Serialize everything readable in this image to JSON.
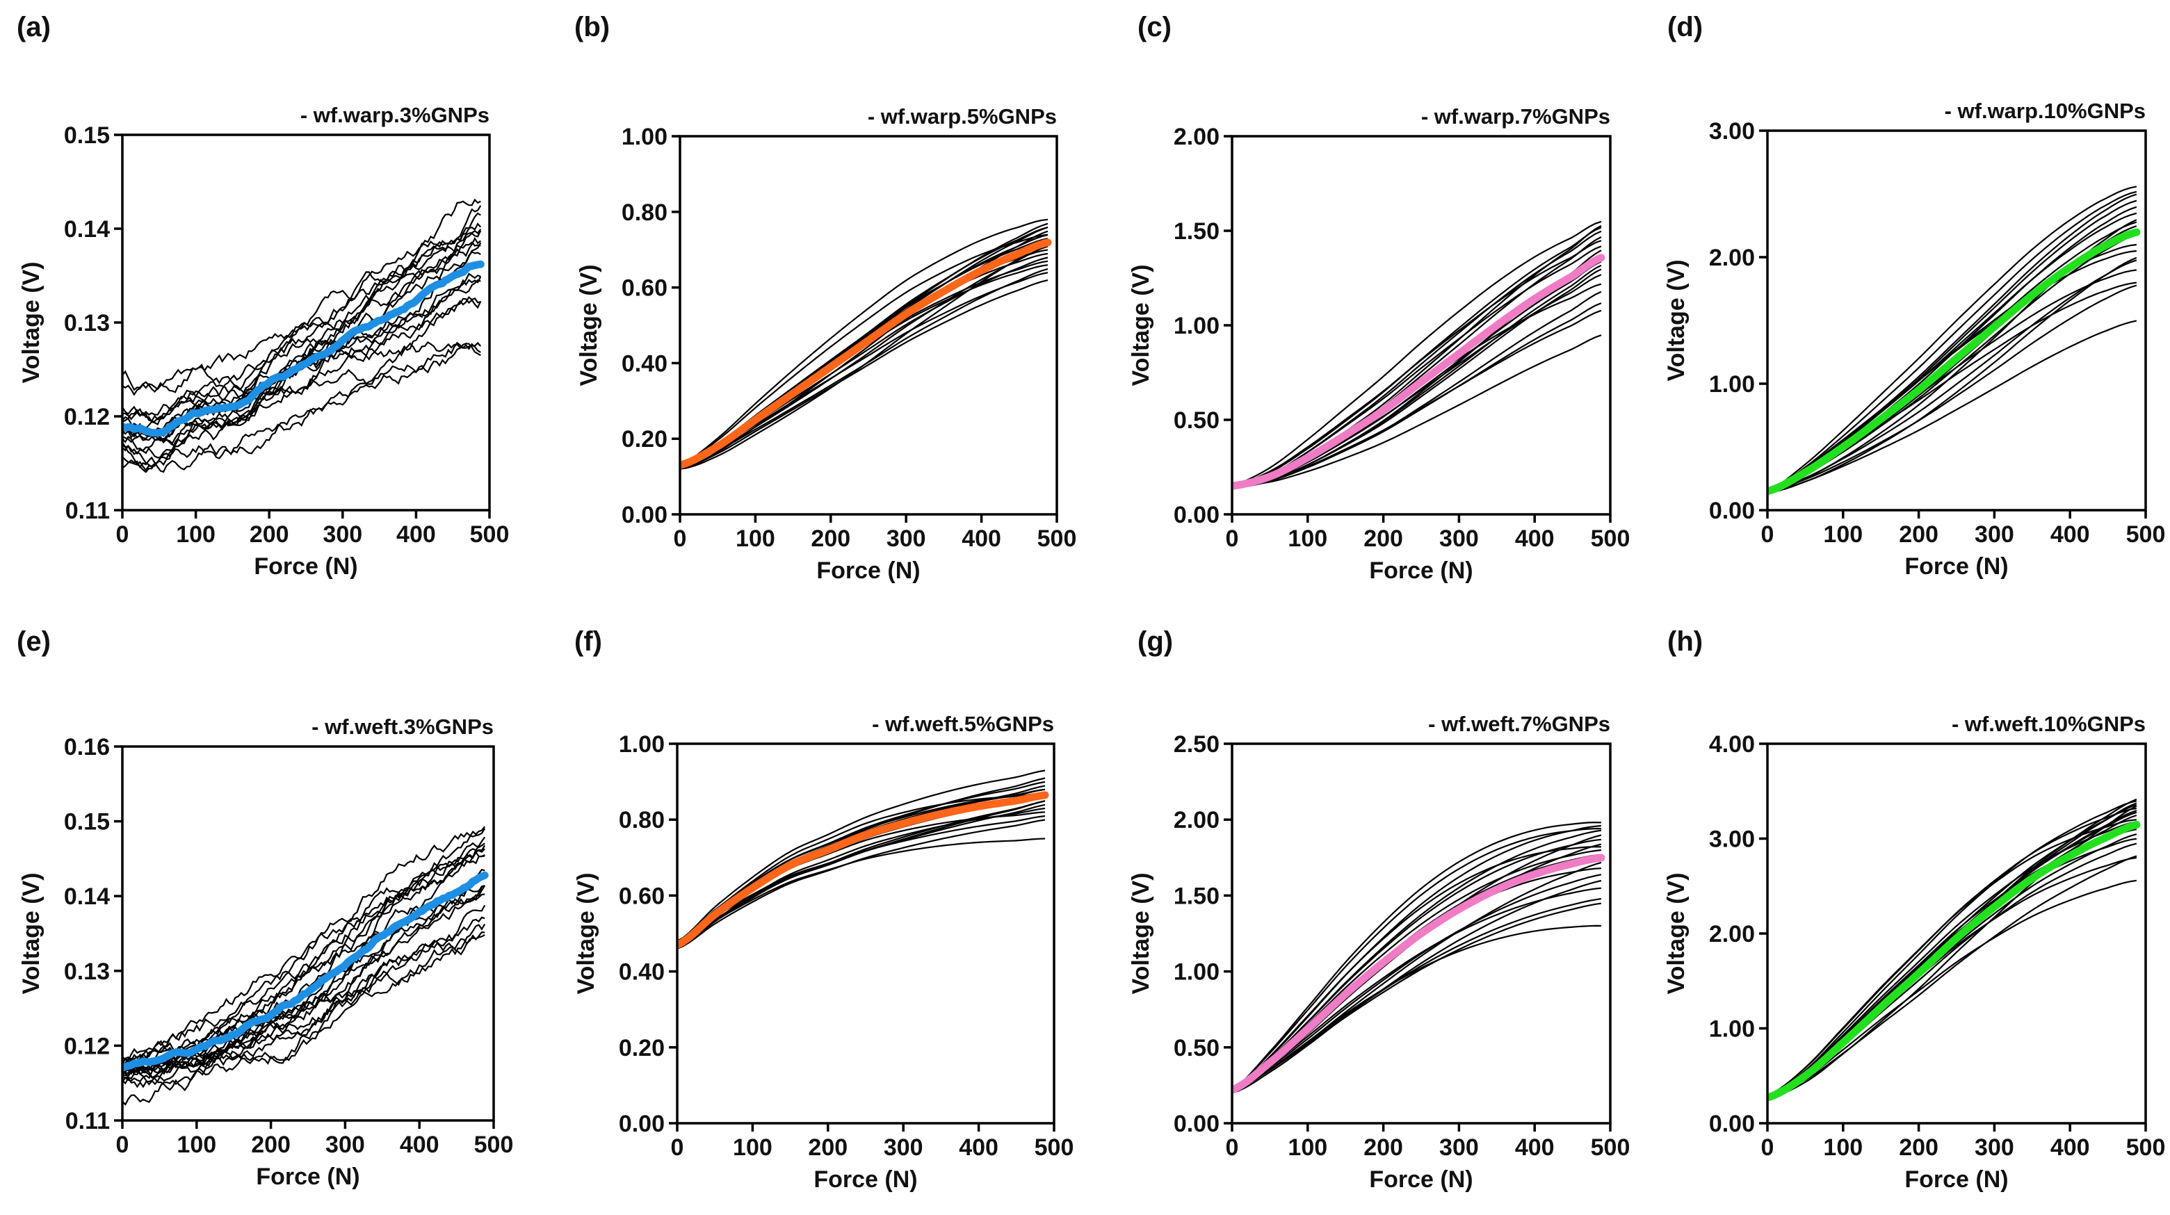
{
  "chart_data": [
    {
      "panel": "(a)",
      "type": "line",
      "title": "- wf.warp.3%GNPs",
      "xlabel": "Force (N)",
      "ylabel": "Voltage (V)",
      "xlim": [
        0,
        500
      ],
      "ylim": [
        0.11,
        0.15
      ],
      "xticks": [
        "0",
        "100",
        "200",
        "300",
        "400",
        "500"
      ],
      "yticks": [
        "0.11",
        "0.12",
        "0.13",
        "0.14",
        "0.15"
      ],
      "mean_color": "#1e8fe3",
      "noisy": true,
      "x": [
        0,
        50,
        100,
        150,
        200,
        250,
        300,
        350,
        400,
        450,
        490
      ],
      "mean": [
        0.119,
        0.1185,
        0.1205,
        0.121,
        0.1235,
        0.1255,
        0.128,
        0.13,
        0.1325,
        0.135,
        0.1365
      ],
      "traces": [
        [
          0.124,
          0.144
        ],
        [
          0.123,
          0.128
        ],
        [
          0.118,
          0.141
        ],
        [
          0.119,
          0.139
        ],
        [
          0.117,
          0.137
        ],
        [
          0.12,
          0.133
        ],
        [
          0.118,
          0.135
        ],
        [
          0.116,
          0.129
        ],
        [
          0.119,
          0.142
        ],
        [
          0.121,
          0.138
        ],
        [
          0.117,
          0.136
        ],
        [
          0.118,
          0.14
        ],
        [
          0.119,
          0.134
        ],
        [
          0.115,
          0.132
        ],
        [
          0.12,
          0.139
        ],
        [
          0.118,
          0.137
        ],
        [
          0.117,
          0.141
        ],
        [
          0.119,
          0.127
        ]
      ]
    },
    {
      "panel": "(b)",
      "type": "line",
      "title": "- wf.warp.5%GNPs",
      "xlabel": "Force (N)",
      "ylabel": "Voltage (V)",
      "xlim": [
        0,
        500
      ],
      "ylim": [
        0,
        1
      ],
      "xticks": [
        "0",
        "100",
        "200",
        "300",
        "400",
        "500"
      ],
      "yticks": [
        "0.00",
        "0.20",
        "0.40",
        "0.60",
        "0.80",
        "1.00"
      ],
      "mean_color": "#ff661a",
      "noisy": false,
      "x": [
        0,
        50,
        100,
        150,
        200,
        250,
        300,
        350,
        400,
        450,
        490
      ],
      "mean": [
        0.13,
        0.18,
        0.25,
        0.32,
        0.39,
        0.46,
        0.53,
        0.59,
        0.645,
        0.69,
        0.72
      ],
      "traces": [
        [
          0.13,
          0.78
        ],
        [
          0.13,
          0.77
        ],
        [
          0.13,
          0.76
        ],
        [
          0.12,
          0.75
        ],
        [
          0.13,
          0.74
        ],
        [
          0.13,
          0.73
        ],
        [
          0.12,
          0.72
        ],
        [
          0.13,
          0.71
        ],
        [
          0.13,
          0.7
        ],
        [
          0.12,
          0.69
        ],
        [
          0.13,
          0.68
        ],
        [
          0.13,
          0.67
        ],
        [
          0.12,
          0.66
        ],
        [
          0.13,
          0.65
        ],
        [
          0.13,
          0.64
        ],
        [
          0.12,
          0.62
        ],
        [
          0.13,
          0.76
        ],
        [
          0.13,
          0.74
        ]
      ]
    },
    {
      "panel": "(c)",
      "type": "line",
      "title": "- wf.warp.7%GNPs",
      "xlabel": "Force (N)",
      "ylabel": "Voltage (V)",
      "xlim": [
        0,
        500
      ],
      "ylim": [
        0,
        2
      ],
      "xticks": [
        "0",
        "100",
        "200",
        "300",
        "400",
        "500"
      ],
      "yticks": [
        "0.00",
        "0.50",
        "1.00",
        "1.50",
        "2.00"
      ],
      "mean_color": "#f07cc6",
      "noisy": false,
      "x": [
        0,
        50,
        100,
        150,
        200,
        250,
        300,
        350,
        400,
        450,
        490
      ],
      "mean": [
        0.15,
        0.2,
        0.3,
        0.42,
        0.55,
        0.7,
        0.85,
        1.0,
        1.14,
        1.26,
        1.36
      ],
      "traces": [
        [
          0.15,
          1.55
        ],
        [
          0.15,
          1.53
        ],
        [
          0.14,
          1.5
        ],
        [
          0.15,
          1.47
        ],
        [
          0.15,
          1.45
        ],
        [
          0.14,
          1.42
        ],
        [
          0.15,
          1.4
        ],
        [
          0.15,
          1.37
        ],
        [
          0.14,
          1.34
        ],
        [
          0.15,
          1.3
        ],
        [
          0.15,
          1.27
        ],
        [
          0.14,
          1.22
        ],
        [
          0.15,
          1.18
        ],
        [
          0.15,
          1.12
        ],
        [
          0.14,
          1.08
        ],
        [
          0.15,
          0.95
        ],
        [
          0.15,
          1.52
        ],
        [
          0.14,
          1.32
        ]
      ]
    },
    {
      "panel": "(d)",
      "type": "line",
      "title": "- wf.warp.10%GNPs",
      "xlabel": "Force (N)",
      "ylabel": "Voltage (V)",
      "xlim": [
        0,
        500
      ],
      "ylim": [
        0,
        3
      ],
      "xticks": [
        "0",
        "100",
        "200",
        "300",
        "400",
        "500"
      ],
      "yticks": [
        "0.00",
        "1.00",
        "2.00",
        "3.00"
      ],
      "mean_color": "#23e01f",
      "noisy": false,
      "x": [
        0,
        50,
        100,
        150,
        200,
        250,
        300,
        350,
        400,
        450,
        490
      ],
      "mean": [
        0.15,
        0.3,
        0.5,
        0.72,
        0.95,
        1.2,
        1.45,
        1.7,
        1.92,
        2.1,
        2.2
      ],
      "traces": [
        [
          0.15,
          2.56
        ],
        [
          0.15,
          2.5
        ],
        [
          0.14,
          2.45
        ],
        [
          0.15,
          2.4
        ],
        [
          0.15,
          2.35
        ],
        [
          0.14,
          2.3
        ],
        [
          0.15,
          2.25
        ],
        [
          0.15,
          2.18
        ],
        [
          0.14,
          2.1
        ],
        [
          0.15,
          2.05
        ],
        [
          0.15,
          1.98
        ],
        [
          0.14,
          1.9
        ],
        [
          0.15,
          1.8
        ],
        [
          0.15,
          1.78
        ],
        [
          0.14,
          1.5
        ],
        [
          0.15,
          2.28
        ],
        [
          0.15,
          2.52
        ],
        [
          0.14,
          2.0
        ]
      ]
    },
    {
      "panel": "(e)",
      "type": "line",
      "title": "- wf.weft.3%GNPs",
      "xlabel": "Force (N)",
      "ylabel": "Voltage (V)",
      "xlim": [
        0,
        500
      ],
      "ylim": [
        0.11,
        0.16
      ],
      "xticks": [
        "0",
        "100",
        "200",
        "300",
        "400",
        "500"
      ],
      "yticks": [
        "0.11",
        "0.12",
        "0.13",
        "0.14",
        "0.15",
        "0.16"
      ],
      "mean_color": "#1e8fe3",
      "noisy": true,
      "x": [
        0,
        50,
        100,
        150,
        200,
        250,
        300,
        350,
        400,
        450,
        490
      ],
      "mean": [
        0.117,
        0.118,
        0.1195,
        0.1215,
        0.124,
        0.127,
        0.131,
        0.135,
        0.138,
        0.1405,
        0.143
      ],
      "traces": [
        [
          0.118,
          0.15
        ],
        [
          0.117,
          0.149
        ],
        [
          0.116,
          0.148
        ],
        [
          0.118,
          0.147
        ],
        [
          0.117,
          0.146
        ],
        [
          0.116,
          0.145
        ],
        [
          0.118,
          0.144
        ],
        [
          0.117,
          0.142
        ],
        [
          0.116,
          0.141
        ],
        [
          0.118,
          0.14
        ],
        [
          0.117,
          0.139
        ],
        [
          0.115,
          0.138
        ],
        [
          0.117,
          0.136
        ],
        [
          0.118,
          0.135
        ],
        [
          0.116,
          0.134
        ],
        [
          0.117,
          0.1345
        ],
        [
          0.113,
          0.148
        ],
        [
          0.117,
          0.143
        ]
      ]
    },
    {
      "panel": "(f)",
      "type": "line",
      "title": "- wf.weft.5%GNPs",
      "xlabel": "Force (N)",
      "ylabel": "Voltage (V)",
      "xlim": [
        0,
        500
      ],
      "ylim": [
        0,
        1
      ],
      "xticks": [
        "0",
        "100",
        "200",
        "300",
        "400",
        "500"
      ],
      "yticks": [
        "0.00",
        "0.20",
        "0.40",
        "0.60",
        "0.80",
        "1.00"
      ],
      "mean_color": "#ff661a",
      "noisy": false,
      "x": [
        0,
        50,
        100,
        150,
        200,
        250,
        300,
        350,
        400,
        450,
        490
      ],
      "mean": [
        0.47,
        0.55,
        0.62,
        0.68,
        0.72,
        0.76,
        0.79,
        0.815,
        0.835,
        0.85,
        0.865
      ],
      "traces": [
        [
          0.48,
          0.93
        ],
        [
          0.47,
          0.91
        ],
        [
          0.48,
          0.9
        ],
        [
          0.46,
          0.89
        ],
        [
          0.47,
          0.88
        ],
        [
          0.48,
          0.87
        ],
        [
          0.46,
          0.86
        ],
        [
          0.47,
          0.85
        ],
        [
          0.48,
          0.84
        ],
        [
          0.46,
          0.83
        ],
        [
          0.47,
          0.82
        ],
        [
          0.48,
          0.81
        ],
        [
          0.46,
          0.8
        ],
        [
          0.47,
          0.75
        ],
        [
          0.48,
          0.88
        ],
        [
          0.47,
          0.86
        ],
        [
          0.46,
          0.85
        ],
        [
          0.47,
          0.87
        ]
      ]
    },
    {
      "panel": "(g)",
      "type": "line",
      "title": "- wf.weft.7%GNPs",
      "xlabel": "Force (N)",
      "ylabel": "Voltage (V)",
      "xlim": [
        0,
        500
      ],
      "ylim": [
        0,
        2.5
      ],
      "xticks": [
        "0",
        "100",
        "200",
        "300",
        "400",
        "500"
      ],
      "yticks": [
        "0.00",
        "0.50",
        "1.00",
        "1.50",
        "2.00",
        "2.50"
      ],
      "mean_color": "#f07cc6",
      "noisy": false,
      "x": [
        0,
        50,
        100,
        150,
        200,
        250,
        300,
        350,
        400,
        450,
        490
      ],
      "mean": [
        0.22,
        0.4,
        0.62,
        0.85,
        1.06,
        1.25,
        1.41,
        1.54,
        1.64,
        1.71,
        1.75
      ],
      "traces": [
        [
          0.22,
          1.98
        ],
        [
          0.21,
          1.96
        ],
        [
          0.22,
          1.93
        ],
        [
          0.2,
          1.9
        ],
        [
          0.22,
          1.87
        ],
        [
          0.21,
          1.84
        ],
        [
          0.22,
          1.8
        ],
        [
          0.2,
          1.77
        ],
        [
          0.22,
          1.72
        ],
        [
          0.21,
          1.68
        ],
        [
          0.22,
          1.64
        ],
        [
          0.2,
          1.6
        ],
        [
          0.22,
          1.55
        ],
        [
          0.21,
          1.48
        ],
        [
          0.22,
          1.45
        ],
        [
          0.2,
          1.3
        ],
        [
          0.22,
          1.94
        ],
        [
          0.21,
          1.82
        ]
      ]
    },
    {
      "panel": "(h)",
      "type": "line",
      "title": "- wf.weft.10%GNPs",
      "xlabel": "Force (N)",
      "ylabel": "Voltage (V)",
      "xlim": [
        0,
        500
      ],
      "ylim": [
        0,
        4
      ],
      "xticks": [
        "0",
        "100",
        "200",
        "300",
        "400",
        "500"
      ],
      "yticks": [
        "0.00",
        "1.00",
        "2.00",
        "3.00",
        "4.00"
      ],
      "mean_color": "#23e01f",
      "noisy": false,
      "x": [
        0,
        50,
        100,
        150,
        200,
        250,
        300,
        350,
        400,
        450,
        490
      ],
      "mean": [
        0.27,
        0.5,
        0.85,
        1.22,
        1.58,
        1.95,
        2.28,
        2.58,
        2.82,
        3.02,
        3.15
      ],
      "traces": [
        [
          0.3,
          3.42
        ],
        [
          0.28,
          3.4
        ],
        [
          0.3,
          3.38
        ],
        [
          0.27,
          3.35
        ],
        [
          0.29,
          3.32
        ],
        [
          0.28,
          3.3
        ],
        [
          0.3,
          3.28
        ],
        [
          0.26,
          3.25
        ],
        [
          0.28,
          3.2
        ],
        [
          0.27,
          3.1
        ],
        [
          0.29,
          3.05
        ],
        [
          0.26,
          2.95
        ],
        [
          0.28,
          2.82
        ],
        [
          0.27,
          2.8
        ],
        [
          0.25,
          2.56
        ],
        [
          0.29,
          3.36
        ],
        [
          0.28,
          3.18
        ],
        [
          0.27,
          3.0
        ]
      ]
    }
  ]
}
